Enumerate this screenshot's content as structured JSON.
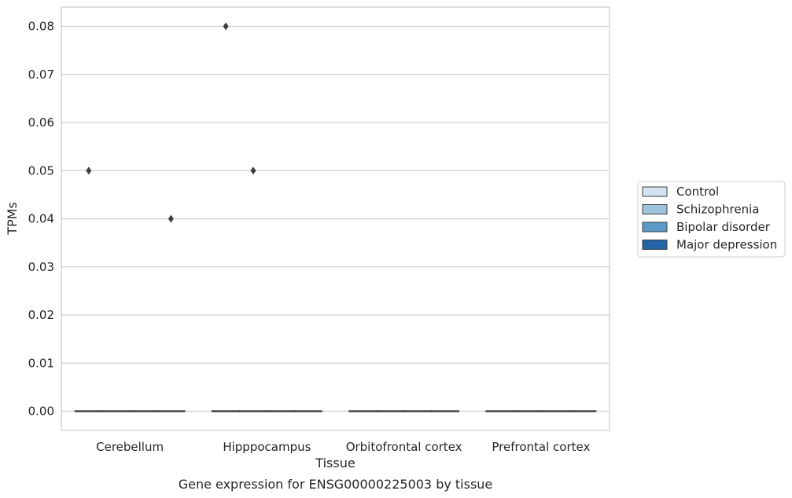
{
  "chart_data": {
    "type": "box",
    "title": "",
    "caption": "Gene expression for ENSG00000225003 by tissue",
    "xlabel": "Tissue",
    "ylabel": "TPMs",
    "categories": [
      "Cerebellum",
      "Hipppocampus",
      "Orbitofrontal cortex",
      "Prefrontal cortex"
    ],
    "y_ticks": [
      0.0,
      0.01,
      0.02,
      0.03,
      0.04,
      0.05,
      0.06,
      0.07,
      0.08
    ],
    "y_tick_labels": [
      "0.00",
      "0.01",
      "0.02",
      "0.03",
      "0.04",
      "0.05",
      "0.06",
      "0.07",
      "0.08"
    ],
    "ylim": [
      -0.004,
      0.084
    ],
    "grid": true,
    "legend_position": "right",
    "series": [
      {
        "name": "Control",
        "color": "#d4e3f1",
        "boxes": [
          {
            "category": "Cerebellum",
            "q1": 0,
            "median": 0,
            "q3": 0,
            "outliers": [
              0.05
            ]
          },
          {
            "category": "Hipppocampus",
            "q1": 0,
            "median": 0,
            "q3": 0,
            "outliers": [
              0.08
            ]
          },
          {
            "category": "Orbitofrontal cortex",
            "q1": 0,
            "median": 0,
            "q3": 0,
            "outliers": []
          },
          {
            "category": "Prefrontal cortex",
            "q1": 0,
            "median": 0,
            "q3": 0,
            "outliers": []
          }
        ]
      },
      {
        "name": "Schizophrenia",
        "color": "#9ec4dd",
        "boxes": [
          {
            "category": "Cerebellum",
            "q1": 0,
            "median": 0,
            "q3": 0,
            "outliers": []
          },
          {
            "category": "Hipppocampus",
            "q1": 0,
            "median": 0,
            "q3": 0,
            "outliers": [
              0.05
            ]
          },
          {
            "category": "Orbitofrontal cortex",
            "q1": 0,
            "median": 0,
            "q3": 0,
            "outliers": []
          },
          {
            "category": "Prefrontal cortex",
            "q1": 0,
            "median": 0,
            "q3": 0,
            "outliers": []
          }
        ]
      },
      {
        "name": "Bipolar disorder",
        "color": "#5a9ac8",
        "boxes": [
          {
            "category": "Cerebellum",
            "q1": 0,
            "median": 0,
            "q3": 0,
            "outliers": []
          },
          {
            "category": "Hipppocampus",
            "q1": 0,
            "median": 0,
            "q3": 0,
            "outliers": []
          },
          {
            "category": "Orbitofrontal cortex",
            "q1": 0,
            "median": 0,
            "q3": 0,
            "outliers": []
          },
          {
            "category": "Prefrontal cortex",
            "q1": 0,
            "median": 0,
            "q3": 0,
            "outliers": []
          }
        ]
      },
      {
        "name": "Major depression",
        "color": "#2364a6",
        "boxes": [
          {
            "category": "Cerebellum",
            "q1": 0,
            "median": 0,
            "q3": 0,
            "outliers": [
              0.04
            ]
          },
          {
            "category": "Hipppocampus",
            "q1": 0,
            "median": 0,
            "q3": 0,
            "outliers": []
          },
          {
            "category": "Orbitofrontal cortex",
            "q1": 0,
            "median": 0,
            "q3": 0,
            "outliers": []
          },
          {
            "category": "Prefrontal cortex",
            "q1": 0,
            "median": 0,
            "q3": 0,
            "outliers": []
          }
        ]
      }
    ]
  }
}
